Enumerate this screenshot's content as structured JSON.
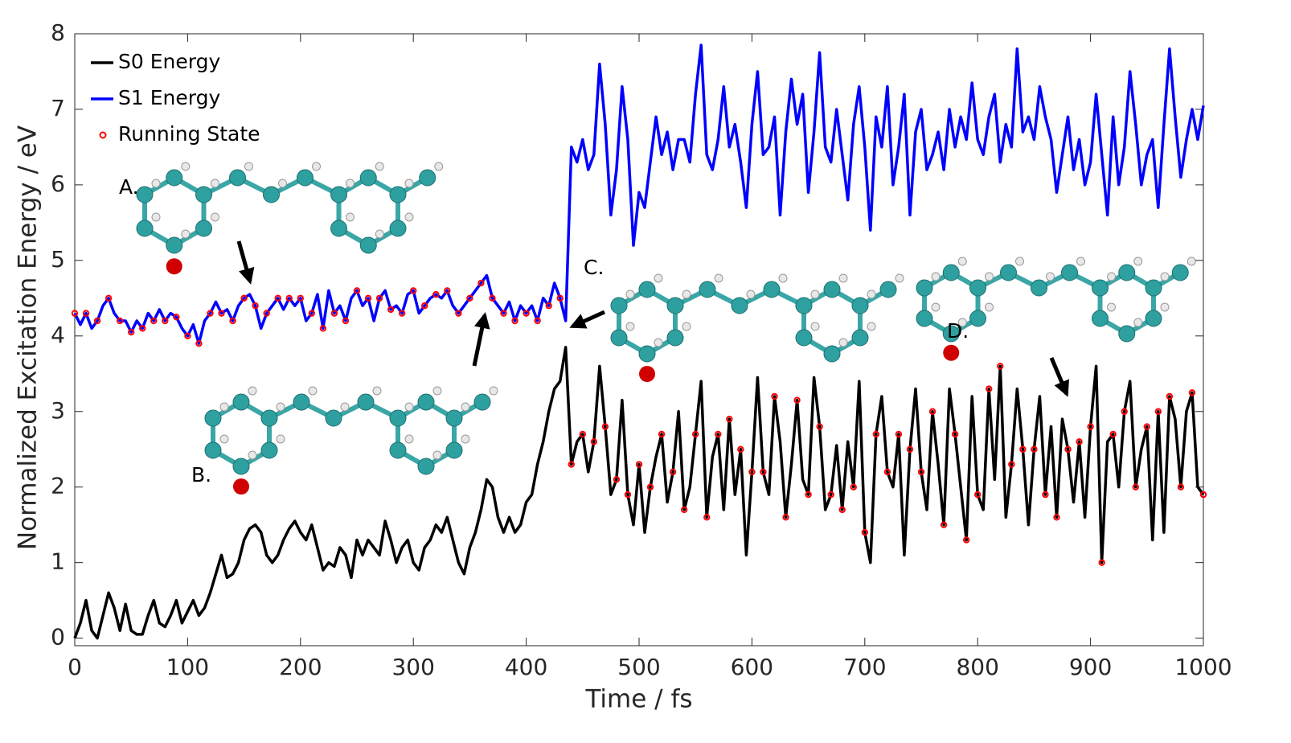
{
  "chart_data": {
    "type": "line",
    "xlabel": "Time / fs",
    "ylabel": "Normalized Excitation Energy / eV",
    "xlim": [
      0,
      1000
    ],
    "ylim": [
      -0.1,
      8
    ],
    "xticks": [
      0,
      100,
      200,
      300,
      400,
      500,
      600,
      700,
      800,
      900,
      1000
    ],
    "yticks": [
      0,
      1,
      2,
      3,
      4,
      5,
      6,
      7,
      8
    ],
    "legend": "upper left",
    "x": [
      0,
      5,
      10,
      15,
      20,
      25,
      30,
      35,
      40,
      45,
      50,
      55,
      60,
      65,
      70,
      75,
      80,
      85,
      90,
      95,
      100,
      105,
      110,
      115,
      120,
      125,
      130,
      135,
      140,
      145,
      150,
      155,
      160,
      165,
      170,
      175,
      180,
      185,
      190,
      195,
      200,
      205,
      210,
      215,
      220,
      225,
      230,
      235,
      240,
      245,
      250,
      255,
      260,
      265,
      270,
      275,
      280,
      285,
      290,
      295,
      300,
      305,
      310,
      315,
      320,
      325,
      330,
      335,
      340,
      345,
      350,
      355,
      360,
      365,
      370,
      375,
      380,
      385,
      390,
      395,
      400,
      405,
      410,
      415,
      420,
      425,
      430,
      435,
      440,
      445,
      450,
      455,
      460,
      465,
      470,
      475,
      480,
      485,
      490,
      495,
      500,
      505,
      510,
      515,
      520,
      525,
      530,
      535,
      540,
      545,
      550,
      555,
      560,
      565,
      570,
      575,
      580,
      585,
      590,
      595,
      600,
      605,
      610,
      615,
      620,
      625,
      630,
      635,
      640,
      645,
      650,
      655,
      660,
      665,
      670,
      675,
      680,
      685,
      690,
      695,
      700,
      705,
      710,
      715,
      720,
      725,
      730,
      735,
      740,
      745,
      750,
      755,
      760,
      765,
      770,
      775,
      780,
      785,
      790,
      795,
      800,
      805,
      810,
      815,
      820,
      825,
      830,
      835,
      840,
      845,
      850,
      855,
      860,
      865,
      870,
      875,
      880,
      885,
      890,
      895,
      900,
      905,
      910,
      915,
      920,
      925,
      930,
      935,
      940,
      945,
      950,
      955,
      960,
      965,
      970,
      975,
      980,
      985,
      990,
      995,
      1000
    ],
    "series": [
      {
        "name": "S0 Energy",
        "color": "#000000",
        "values": [
          0,
          0.2,
          0.5,
          0.1,
          0.0,
          0.3,
          0.6,
          0.4,
          0.1,
          0.45,
          0.1,
          0.05,
          0.05,
          0.3,
          0.5,
          0.2,
          0.15,
          0.3,
          0.5,
          0.2,
          0.35,
          0.5,
          0.3,
          0.4,
          0.6,
          0.85,
          1.1,
          0.8,
          0.85,
          1.0,
          1.3,
          1.45,
          1.5,
          1.4,
          1.1,
          1.0,
          1.1,
          1.3,
          1.45,
          1.55,
          1.4,
          1.3,
          1.5,
          1.2,
          0.9,
          1.0,
          0.95,
          1.2,
          1.1,
          0.8,
          1.3,
          1.1,
          1.3,
          1.2,
          1.1,
          1.55,
          1.3,
          1.0,
          1.2,
          1.3,
          1.0,
          0.9,
          1.2,
          1.3,
          1.5,
          1.4,
          1.6,
          1.3,
          1.0,
          0.85,
          1.2,
          1.4,
          1.7,
          2.1,
          2.0,
          1.6,
          1.4,
          1.6,
          1.4,
          1.5,
          1.8,
          1.9,
          2.3,
          2.6,
          3.0,
          3.3,
          3.4,
          3.85,
          2.3,
          2.6,
          2.7,
          2.2,
          2.6,
          3.6,
          2.8,
          1.9,
          2.1,
          3.15,
          1.9,
          1.5,
          2.3,
          1.4,
          2.0,
          2.4,
          2.7,
          1.8,
          2.2,
          3.0,
          1.7,
          2.0,
          2.7,
          3.4,
          1.6,
          2.4,
          2.7,
          1.7,
          2.9,
          1.9,
          2.5,
          1.1,
          2.2,
          3.45,
          2.2,
          1.9,
          3.2,
          2.6,
          1.6,
          2.3,
          3.15,
          2.1,
          1.9,
          3.45,
          2.8,
          1.7,
          1.9,
          2.55,
          1.7,
          2.6,
          2.0,
          3.4,
          1.4,
          1.0,
          2.7,
          3.2,
          2.2,
          2.0,
          2.7,
          1.1,
          2.5,
          3.3,
          2.2,
          1.7,
          3.0,
          2.3,
          1.5,
          3.3,
          2.7,
          2.0,
          1.3,
          3.2,
          1.9,
          1.7,
          3.3,
          2.1,
          3.6,
          1.6,
          2.3,
          3.3,
          2.5,
          1.5,
          2.5,
          3.2,
          1.9,
          2.8,
          1.6,
          2.9,
          2.5,
          1.8,
          2.6,
          1.6,
          2.8,
          3.6,
          1.0,
          2.6,
          2.7,
          2.0,
          3.0,
          3.4,
          2.0,
          2.5,
          2.8,
          1.3,
          3.0,
          1.4,
          3.2,
          2.9,
          2.0,
          3.0,
          3.25,
          2.0,
          1.9
        ]
      },
      {
        "name": "S1 Energy",
        "color": "#0000ff",
        "values": [
          4.3,
          4.15,
          4.3,
          4.1,
          4.2,
          4.4,
          4.5,
          4.3,
          4.2,
          4.2,
          4.05,
          4.2,
          4.1,
          4.3,
          4.2,
          4.35,
          4.2,
          4.3,
          4.25,
          4.1,
          4.0,
          4.15,
          3.9,
          4.2,
          4.3,
          4.45,
          4.3,
          4.35,
          4.2,
          4.4,
          4.5,
          4.55,
          4.4,
          4.1,
          4.3,
          4.4,
          4.5,
          4.35,
          4.5,
          4.4,
          4.5,
          4.2,
          4.3,
          4.55,
          4.1,
          4.6,
          4.3,
          4.4,
          4.2,
          4.5,
          4.6,
          4.4,
          4.5,
          4.2,
          4.5,
          4.6,
          4.35,
          4.4,
          4.3,
          4.55,
          4.6,
          4.3,
          4.4,
          4.5,
          4.55,
          4.5,
          4.6,
          4.4,
          4.3,
          4.4,
          4.5,
          4.6,
          4.7,
          4.8,
          4.5,
          4.4,
          4.3,
          4.45,
          4.2,
          4.4,
          4.3,
          4.4,
          4.2,
          4.5,
          4.4,
          4.7,
          4.5,
          4.2,
          6.5,
          6.3,
          6.6,
          6.2,
          6.4,
          7.6,
          6.8,
          5.6,
          6.2,
          7.3,
          6.6,
          5.2,
          5.9,
          5.7,
          6.3,
          6.9,
          6.4,
          6.7,
          6.2,
          6.6,
          6.6,
          6.3,
          7.2,
          7.85,
          6.4,
          6.2,
          6.6,
          7.3,
          6.5,
          6.8,
          6.3,
          5.7,
          6.8,
          7.5,
          6.4,
          6.5,
          6.9,
          5.6,
          6.7,
          7.4,
          6.8,
          7.2,
          5.9,
          6.7,
          7.75,
          6.5,
          6.3,
          7.0,
          6.4,
          5.8,
          6.8,
          7.3,
          6.5,
          5.4,
          6.9,
          6.5,
          7.3,
          6.0,
          6.5,
          7.2,
          5.6,
          6.7,
          7.0,
          6.2,
          6.4,
          6.7,
          6.2,
          7.0,
          6.5,
          6.9,
          6.6,
          7.35,
          6.6,
          6.4,
          6.9,
          7.2,
          6.3,
          6.8,
          6.5,
          7.8,
          6.7,
          6.9,
          6.6,
          7.3,
          6.9,
          6.6,
          5.9,
          6.4,
          6.9,
          6.2,
          6.6,
          6.0,
          6.3,
          7.2,
          6.4,
          5.6,
          6.9,
          6.0,
          6.5,
          7.5,
          6.8,
          6.0,
          6.4,
          6.6,
          5.7,
          6.8,
          7.8,
          6.9,
          6.1,
          6.6,
          7.0,
          6.6,
          7.05
        ]
      },
      {
        "name": "Running State",
        "type": "scatter",
        "color": "#ff0000",
        "x": [
          0,
          10,
          20,
          30,
          40,
          50,
          60,
          70,
          80,
          90,
          100,
          110,
          120,
          130,
          140,
          150,
          160,
          170,
          180,
          190,
          200,
          210,
          220,
          230,
          240,
          250,
          260,
          270,
          280,
          290,
          300,
          310,
          320,
          330,
          340,
          350,
          360,
          370,
          380,
          390,
          400,
          410,
          420,
          430,
          440,
          450,
          460,
          470,
          480,
          490,
          500,
          510,
          520,
          530,
          540,
          550,
          560,
          570,
          580,
          590,
          600,
          610,
          620,
          630,
          640,
          650,
          660,
          670,
          680,
          690,
          700,
          710,
          720,
          730,
          740,
          750,
          760,
          770,
          780,
          790,
          800,
          810,
          820,
          830,
          840,
          850,
          860,
          870,
          880,
          890,
          900,
          910,
          920,
          930,
          940,
          950,
          960,
          970,
          980,
          990,
          1000
        ],
        "values": [
          4.3,
          4.3,
          4.2,
          4.5,
          4.2,
          4.05,
          4.1,
          4.2,
          4.2,
          4.25,
          4.0,
          3.9,
          4.3,
          4.3,
          4.2,
          4.5,
          4.4,
          4.3,
          4.5,
          4.5,
          4.5,
          4.3,
          4.1,
          4.3,
          4.2,
          4.6,
          4.5,
          4.5,
          4.35,
          4.3,
          4.6,
          4.4,
          4.55,
          4.6,
          4.3,
          4.5,
          4.7,
          4.5,
          4.3,
          4.2,
          4.3,
          4.2,
          4.4,
          4.5,
          2.3,
          2.7,
          2.6,
          2.8,
          2.1,
          1.9,
          2.3,
          2.0,
          2.7,
          2.2,
          1.7,
          2.7,
          1.6,
          2.7,
          2.9,
          2.5,
          2.2,
          2.2,
          3.2,
          1.6,
          3.15,
          1.9,
          2.8,
          1.9,
          1.7,
          2.0,
          1.4,
          2.7,
          2.2,
          2.7,
          2.5,
          2.2,
          3.0,
          1.5,
          2.7,
          1.3,
          1.9,
          3.3,
          3.6,
          2.3,
          2.5,
          2.5,
          1.9,
          1.6,
          2.5,
          2.6,
          2.8,
          1.0,
          2.7,
          3.0,
          2.0,
          2.8,
          3.0,
          3.2,
          2.0,
          3.25,
          1.9
        ]
      }
    ],
    "annotations": [
      "A.",
      "B.",
      "C.",
      "D."
    ]
  }
}
